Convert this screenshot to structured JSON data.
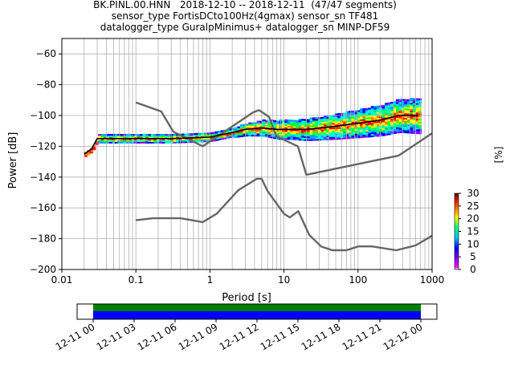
{
  "header": {
    "line1": "BK.PINL.00.HNN   2018-12-10 -- 2018-12-11  (47/47 segments)",
    "line2": "sensor_type FortisDCto100Hz(4gmax) sensor_sn TF481",
    "line3": "datalogger_type GuralpMinimus+ datalogger_sn MINP-DF59"
  },
  "chart_data": [
    {
      "type": "heatmap",
      "subtype": "ppsd",
      "xlabel": "Period [s]",
      "ylabel": "Power [dB]",
      "xscale": "log",
      "xlim": [
        0.01,
        1000
      ],
      "ylim": [
        -200,
        -50
      ],
      "grid": true,
      "xticks": [
        0.01,
        0.1,
        1,
        10,
        100,
        1000
      ],
      "xtick_labels": [
        "0.01",
        "0.1",
        "1",
        "10",
        "100",
        "1000"
      ],
      "yticks": [
        -200,
        -180,
        -160,
        -140,
        -120,
        -100,
        -80,
        -60
      ],
      "ytick_labels": [
        "−200",
        "−180",
        "−160",
        "−140",
        "−120",
        "−100",
        "−80",
        "−60"
      ],
      "colorbar": {
        "label": "[%]",
        "range": [
          0,
          30
        ],
        "ticks": [
          0,
          5,
          10,
          15,
          20,
          25,
          30
        ],
        "tick_labels": [
          "0",
          "5",
          "10",
          "15",
          "20",
          "25",
          "30"
        ]
      },
      "series": [
        {
          "line": "noise-model-high",
          "color": "#666666",
          "x": [
            0.1,
            0.22,
            0.32,
            0.8,
            3.8,
            4.6,
            6.3,
            7.9,
            15.4,
            20,
            354.8,
            1000
          ],
          "y": [
            -91.5,
            -97.4,
            -110.5,
            -120,
            -98,
            -96.5,
            -101,
            -113.5,
            -120,
            -138.5,
            -126,
            -111.5
          ]
        },
        {
          "line": "noise-model-low",
          "color": "#666666",
          "x": [
            0.1,
            0.17,
            0.4,
            0.8,
            1.24,
            2.4,
            4.3,
            5,
            6,
            10,
            12,
            15.6,
            21.9,
            31.6,
            45,
            70,
            101,
            154,
            328,
            600,
            1000
          ],
          "y": [
            -168,
            -166.7,
            -166.7,
            -169.2,
            -163.7,
            -148.6,
            -141.1,
            -141.1,
            -149,
            -163.8,
            -166.2,
            -162.1,
            -177.5,
            -185,
            -187.5,
            -187.5,
            -185,
            -185,
            -187.5,
            -184.4,
            -178
          ]
        },
        {
          "line": "mean",
          "color": "#000000",
          "x": [
            0.02,
            0.025,
            0.03,
            0.05,
            0.1,
            0.3,
            1,
            2,
            3,
            5,
            8,
            10,
            20,
            50,
            100,
            200,
            350,
            500,
            650
          ],
          "y": [
            -125,
            -122,
            -115,
            -115,
            -115,
            -115,
            -114,
            -111,
            -109,
            -108,
            -109,
            -109,
            -109,
            -107,
            -105,
            -103,
            -100,
            -100,
            -100
          ]
        }
      ]
    },
    {
      "type": "heatmap",
      "subtype": "data-coverage",
      "xtick_labels": [
        "12-11 00",
        "12-11 03",
        "12-11 06",
        "12-11 09",
        "12-11 12",
        "12-11 15",
        "12-11 18",
        "12-11 21",
        "12-12 00"
      ],
      "bands": [
        {
          "color": "#008000"
        },
        {
          "color": "#0000ff"
        }
      ]
    }
  ]
}
